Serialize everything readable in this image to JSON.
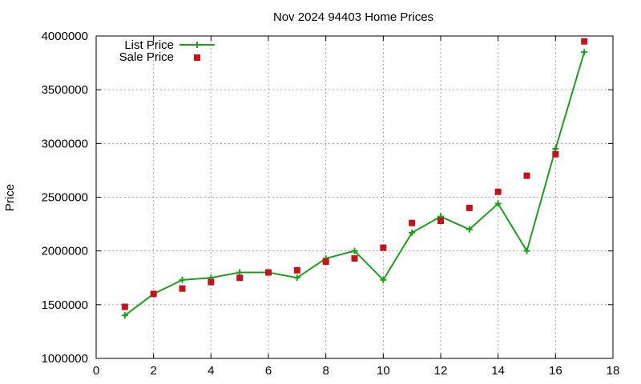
{
  "chart_data": {
    "type": "line",
    "title": "Nov 2024 94403 Home Prices",
    "xlabel": "",
    "ylabel": "Price",
    "xlim": [
      0,
      18
    ],
    "ylim": [
      1000000,
      4000000
    ],
    "x_ticks": [
      0,
      2,
      4,
      6,
      8,
      10,
      12,
      14,
      16,
      18
    ],
    "y_ticks": [
      1000000,
      1500000,
      2000000,
      2500000,
      3000000,
      3500000,
      4000000
    ],
    "x_tick_labels": [
      "0",
      "2",
      "4",
      "6",
      "8",
      "10",
      "12",
      "14",
      "16",
      "18"
    ],
    "y_tick_labels": [
      "1000000",
      "1500000",
      "2000000",
      "2500000",
      "3000000",
      "3500000",
      "4000000"
    ],
    "grid": true,
    "legend_position": "top-left",
    "series": [
      {
        "name": "List Price",
        "style": "linespoints",
        "marker": "plus",
        "color": "#1aa11a",
        "x": [
          1,
          2,
          3,
          4,
          5,
          6,
          7,
          8,
          9,
          10,
          11,
          12,
          13,
          14,
          15,
          16,
          17
        ],
        "values": [
          1400000,
          1600000,
          1730000,
          1750000,
          1800000,
          1800000,
          1750000,
          1930000,
          2000000,
          1730000,
          2170000,
          2320000,
          2200000,
          2440000,
          2000000,
          2950000,
          3850000
        ]
      },
      {
        "name": "Sale Price",
        "style": "points",
        "marker": "square",
        "color": "#c8121a",
        "x": [
          1,
          2,
          3,
          4,
          5,
          6,
          7,
          8,
          9,
          10,
          11,
          12,
          13,
          14,
          15,
          16,
          17
        ],
        "values": [
          1480000,
          1600000,
          1650000,
          1710000,
          1750000,
          1800000,
          1820000,
          1900000,
          1930000,
          2030000,
          2260000,
          2280000,
          2400000,
          2550000,
          2700000,
          2900000,
          3950000
        ]
      }
    ]
  }
}
